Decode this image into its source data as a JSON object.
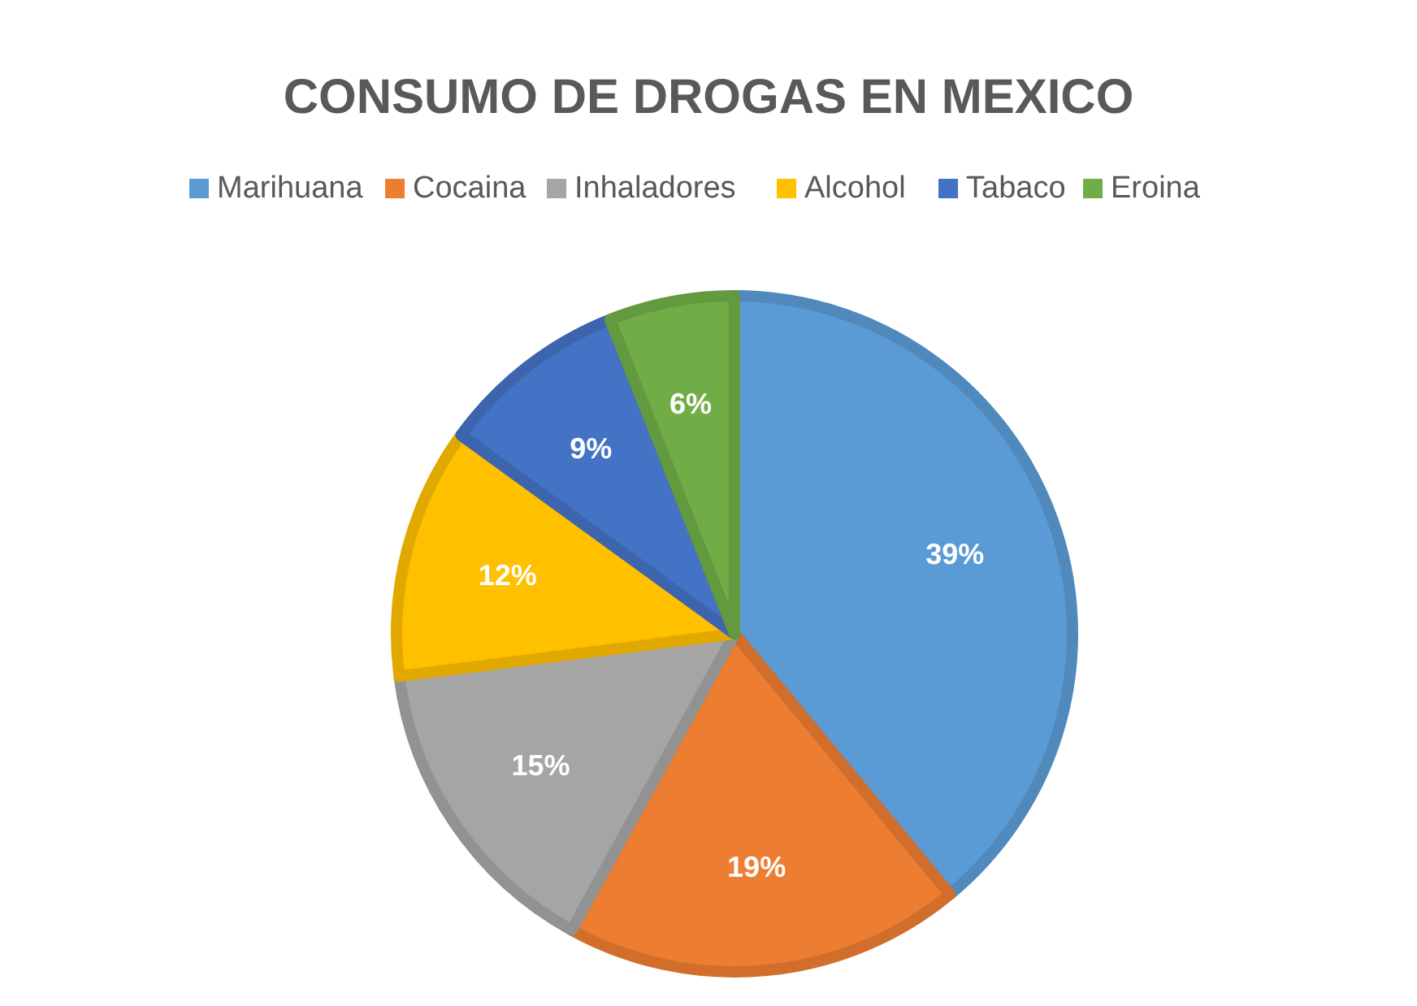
{
  "chart_data": {
    "type": "pie",
    "title": "CONSUMO DE DROGAS EN MEXICO",
    "categories": [
      "Marihuana",
      "Cocaina",
      "Inhaladores",
      "Alcohol",
      "Tabaco",
      "Eroina"
    ],
    "values": [
      39,
      19,
      15,
      12,
      9,
      6
    ],
    "value_labels": [
      "39%",
      "19%",
      "15%",
      "12%",
      "9%",
      "6%"
    ],
    "colors": [
      "#5b9bd5",
      "#ed7d31",
      "#a5a5a5",
      "#ffc000",
      "#4472c4",
      "#70ad47"
    ],
    "legend": "top"
  }
}
